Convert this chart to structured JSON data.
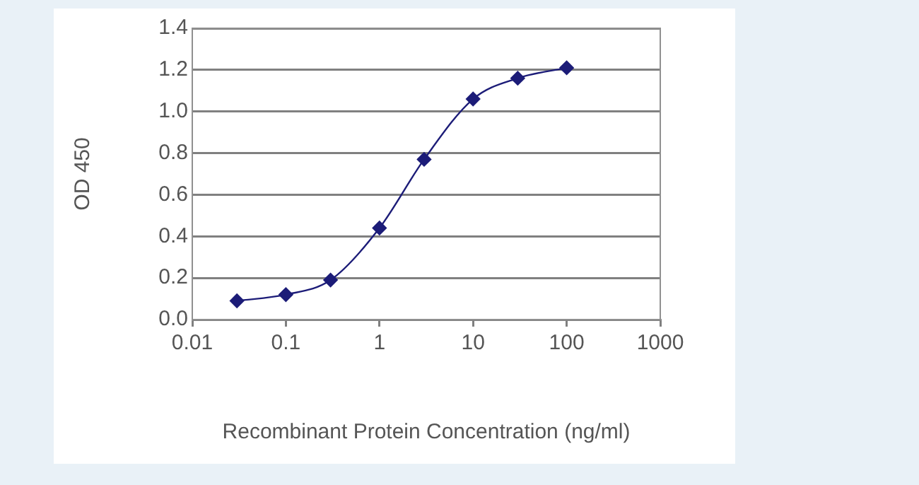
{
  "chart_data": {
    "type": "line",
    "xlabel": "Recombinant Protein Concentration (ng/ml)",
    "ylabel": "OD 450",
    "log": "x",
    "x": [
      0.03,
      0.1,
      0.3,
      1,
      3,
      10,
      30,
      100
    ],
    "series": [
      {
        "color": "#1c1c78",
        "values": [
          0.09,
          0.12,
          0.19,
          0.44,
          0.77,
          1.06,
          1.16,
          1.21
        ]
      }
    ],
    "xlim": [
      0.01,
      1000
    ],
    "xticks": [
      0.01,
      0.1,
      1,
      10,
      100,
      1000
    ],
    "ylim": [
      0,
      1.4
    ],
    "yticks": [
      {
        "value": 0,
        "label": "0.0"
      },
      0.2,
      0.4,
      0.6,
      0.8,
      {
        "value": 1,
        "label": "1.0"
      },
      1.2,
      1.4
    ],
    "grid": "y",
    "marker": "diamond",
    "line_style": "solid",
    "legend": false
  }
}
